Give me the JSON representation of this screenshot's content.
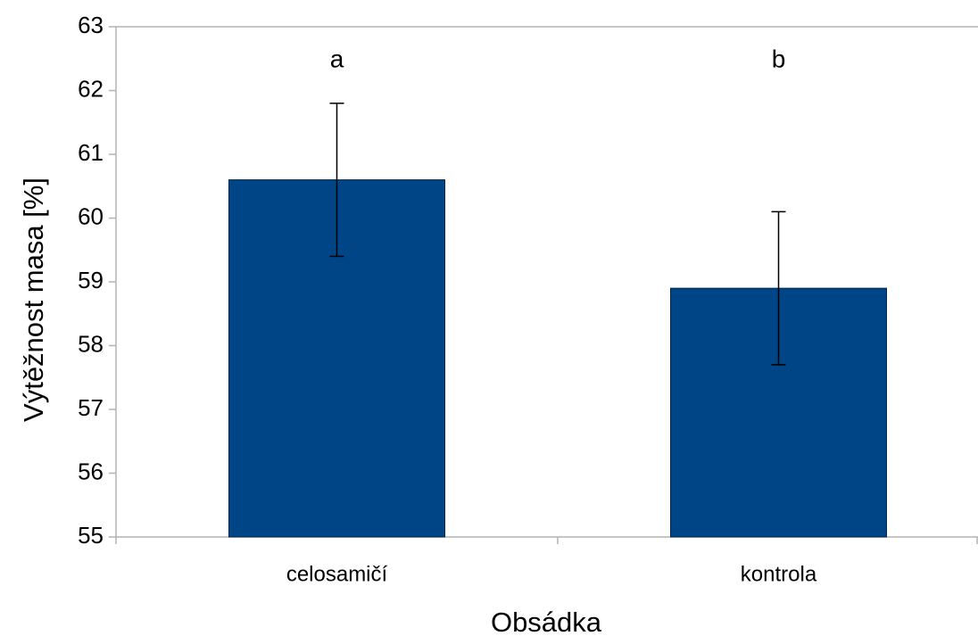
{
  "chart_data": {
    "type": "bar",
    "x_label": "Obsádka",
    "y_label": "Výtěžnost masa [%]",
    "categories": [
      "celosamičí",
      "kontrola"
    ],
    "values": [
      60.6,
      58.9
    ],
    "errors": [
      1.2,
      1.2
    ],
    "annotations": [
      "a",
      "b"
    ],
    "color": "#004586",
    "ylim": [
      55,
      63
    ],
    "yticks": [
      55,
      56,
      57,
      58,
      59,
      60,
      61,
      62,
      63
    ],
    "grid": false
  }
}
